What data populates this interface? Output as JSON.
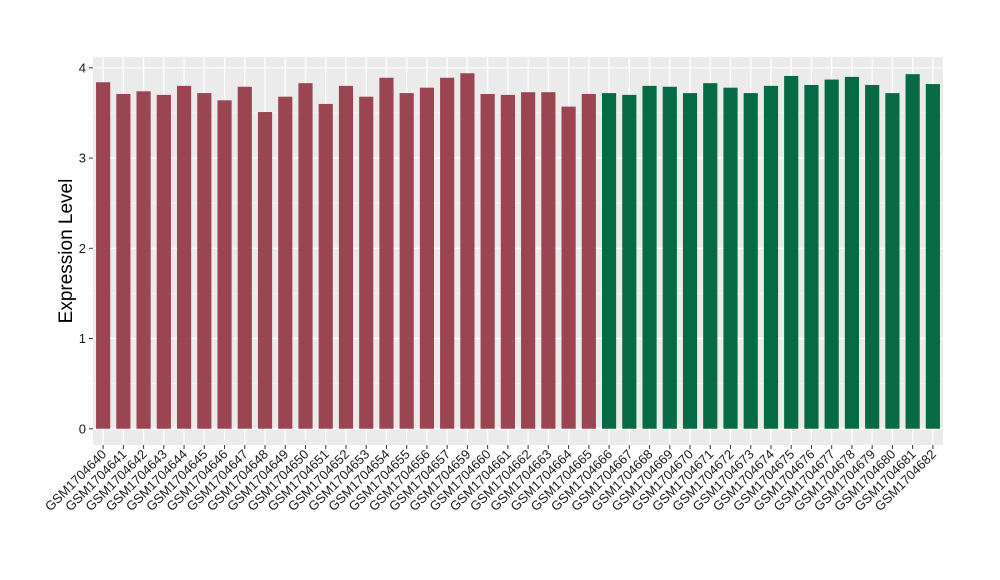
{
  "chart_data": {
    "type": "bar",
    "xlabel": "",
    "ylabel": "Expression Level",
    "ylim": [
      -0.18,
      4.12
    ],
    "yticks": [
      0,
      1,
      2,
      3,
      4
    ],
    "grid": true,
    "legend": "none",
    "background": "#ebebeb",
    "colors": {
      "group_1": "#9b4452",
      "group_2": "#066a45",
      "grid_major": "#ffffff"
    },
    "categories": [
      "GSM1704640",
      "GSM1704641",
      "GSM1704642",
      "GSM1704643",
      "GSM1704644",
      "GSM1704645",
      "GSM1704646",
      "GSM1704647",
      "GSM1704648",
      "GSM1704649",
      "GSM1704650",
      "GSM1704651",
      "GSM1704652",
      "GSM1704653",
      "GSM1704654",
      "GSM1704655",
      "GSM1704656",
      "GSM1704657",
      "GSM1704659",
      "GSM1704660",
      "GSM1704661",
      "GSM1704662",
      "GSM1704663",
      "GSM1704664",
      "GSM1704665",
      "GSM1704666",
      "GSM1704667",
      "GSM1704668",
      "GSM1704669",
      "GSM1704670",
      "GSM1704671",
      "GSM1704672",
      "GSM1704673",
      "GSM1704674",
      "GSM1704675",
      "GSM1704676",
      "GSM1704677",
      "GSM1704678",
      "GSM1704679",
      "GSM1704680",
      "GSM1704681",
      "GSM1704682"
    ],
    "values": [
      3.84,
      3.71,
      3.74,
      3.7,
      3.8,
      3.72,
      3.64,
      3.79,
      3.51,
      3.68,
      3.83,
      3.6,
      3.8,
      3.68,
      3.89,
      3.72,
      3.78,
      3.89,
      3.94,
      3.71,
      3.7,
      3.73,
      3.73,
      3.57,
      3.71,
      3.72,
      3.7,
      3.8,
      3.79,
      3.72,
      3.83,
      3.78,
      3.72,
      3.8,
      3.91,
      3.81,
      3.87,
      3.9,
      3.81,
      3.72,
      3.93,
      3.82
    ],
    "groups": [
      1,
      1,
      1,
      1,
      1,
      1,
      1,
      1,
      1,
      1,
      1,
      1,
      1,
      1,
      1,
      1,
      1,
      1,
      1,
      1,
      1,
      1,
      1,
      1,
      1,
      2,
      2,
      2,
      2,
      2,
      2,
      2,
      2,
      2,
      2,
      2,
      2,
      2,
      2,
      2,
      2,
      2
    ]
  }
}
